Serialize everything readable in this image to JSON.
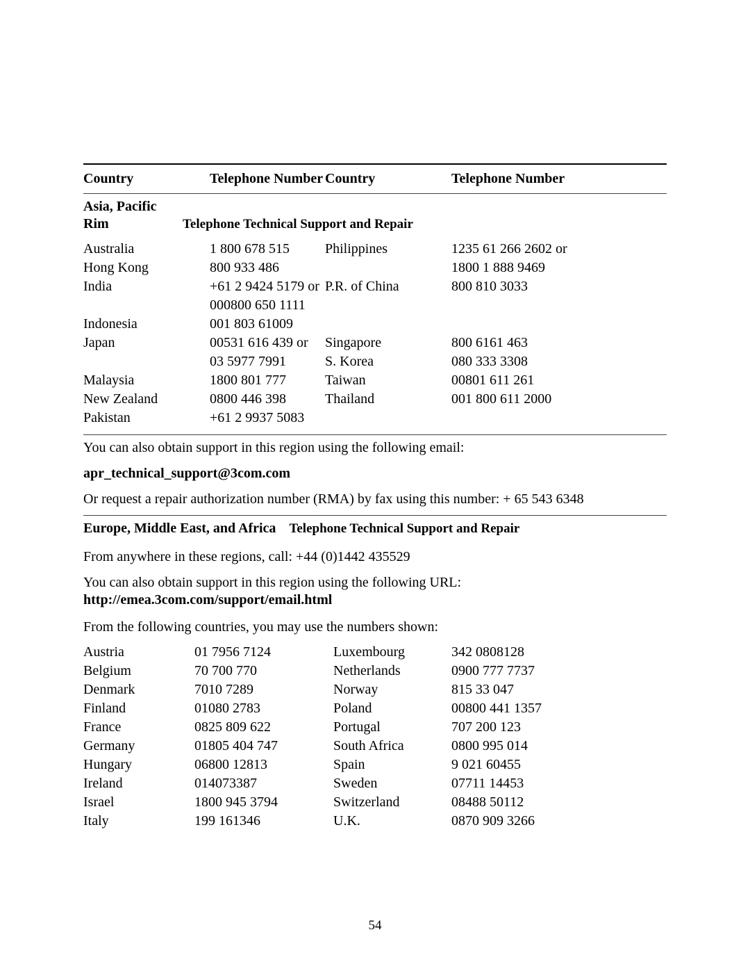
{
  "headers": {
    "country1": "Country",
    "phone1": "Telephone Number",
    "country2": "Country",
    "phone2": "Telephone Number"
  },
  "asia": {
    "region": "Asia, Pacific Rim",
    "subtitle": "Telephone Technical Support and Repair",
    "left": [
      {
        "country": "Australia",
        "phone": "1 800 678 515"
      },
      {
        "country": "Hong Kong",
        "phone": "800 933 486"
      },
      {
        "country": "India",
        "phone": "+61 2 9424 5179 or"
      },
      {
        "country": "",
        "phone": "000800 650 1111"
      },
      {
        "country": "Indonesia",
        "phone": "001 803 61009"
      },
      {
        "country": "Japan",
        "phone": "00531 616 439 or"
      },
      {
        "country": "",
        "phone": "03 5977 7991"
      },
      {
        "country": "Malaysia",
        "phone": "1800 801 777"
      },
      {
        "country": "New Zealand",
        "phone": "0800 446 398"
      },
      {
        "country": "Pakistan",
        "phone": "+61 2 9937 5083"
      }
    ],
    "right": [
      {
        "country": "Philippines",
        "phone": "1235 61 266 2602 or"
      },
      {
        "country": "",
        "phone": "1800 1 888 9469"
      },
      {
        "country": "P.R. of China",
        "phone": "800 810 3033"
      },
      {
        "country": "",
        "phone": ""
      },
      {
        "country": "",
        "phone": ""
      },
      {
        "country": "Singapore",
        "phone": "800 6161 463"
      },
      {
        "country": "S. Korea",
        "phone": "080 333 3308"
      },
      {
        "country": "Taiwan",
        "phone": "00801 611 261"
      },
      {
        "country": "Thailand",
        "phone": "001 800 611 2000"
      },
      {
        "country": "",
        "phone": ""
      }
    ],
    "emailIntro": "You can also obtain support in this region using the following email:",
    "email": "apr_technical_support@3com.com",
    "rmaText": "Or request a repair authorization number (RMA) by fax using this number: + 65 543 6348"
  },
  "emea": {
    "region": "Europe, Middle East, and Africa",
    "subtitle": "Telephone Technical Support and Repair",
    "anywhere": "From anywhere in these regions, call: +44 (0)1442 435529",
    "urlIntro": "You can also obtain support in this region using the following URL:",
    "url": "http://emea.3com.com/support/email.html",
    "fromCountries": "From the following countries, you may use the numbers shown:",
    "left": [
      {
        "country": "Austria",
        "phone": "01 7956 7124"
      },
      {
        "country": "Belgium",
        "phone": "70 700 770"
      },
      {
        "country": "Denmark",
        "phone": "7010 7289"
      },
      {
        "country": "Finland",
        "phone": "01080 2783"
      },
      {
        "country": "France",
        "phone": "0825 809 622"
      },
      {
        "country": "Germany",
        "phone": "01805 404 747"
      },
      {
        "country": "Hungary",
        "phone": "06800 12813"
      },
      {
        "country": "Ireland",
        "phone": "014073387"
      },
      {
        "country": "Israel",
        "phone": "1800 945 3794"
      },
      {
        "country": "Italy",
        "phone": "199 161346"
      }
    ],
    "right": [
      {
        "country": "Luxembourg",
        "phone": "342 0808128"
      },
      {
        "country": "Netherlands",
        "phone": "0900 777 7737"
      },
      {
        "country": "Norway",
        "phone": "815 33 047"
      },
      {
        "country": "Poland",
        "phone": "00800 441 1357"
      },
      {
        "country": "Portugal",
        "phone": "707 200 123"
      },
      {
        "country": "South Africa",
        "phone": "0800 995 014"
      },
      {
        "country": "Spain",
        "phone": "9 021 60455"
      },
      {
        "country": "Sweden",
        "phone": "07711 14453"
      },
      {
        "country": "Switzerland",
        "phone": "08488 50112"
      },
      {
        "country": "U.K.",
        "phone": "0870 909 3266"
      }
    ]
  },
  "pageNumber": "54"
}
